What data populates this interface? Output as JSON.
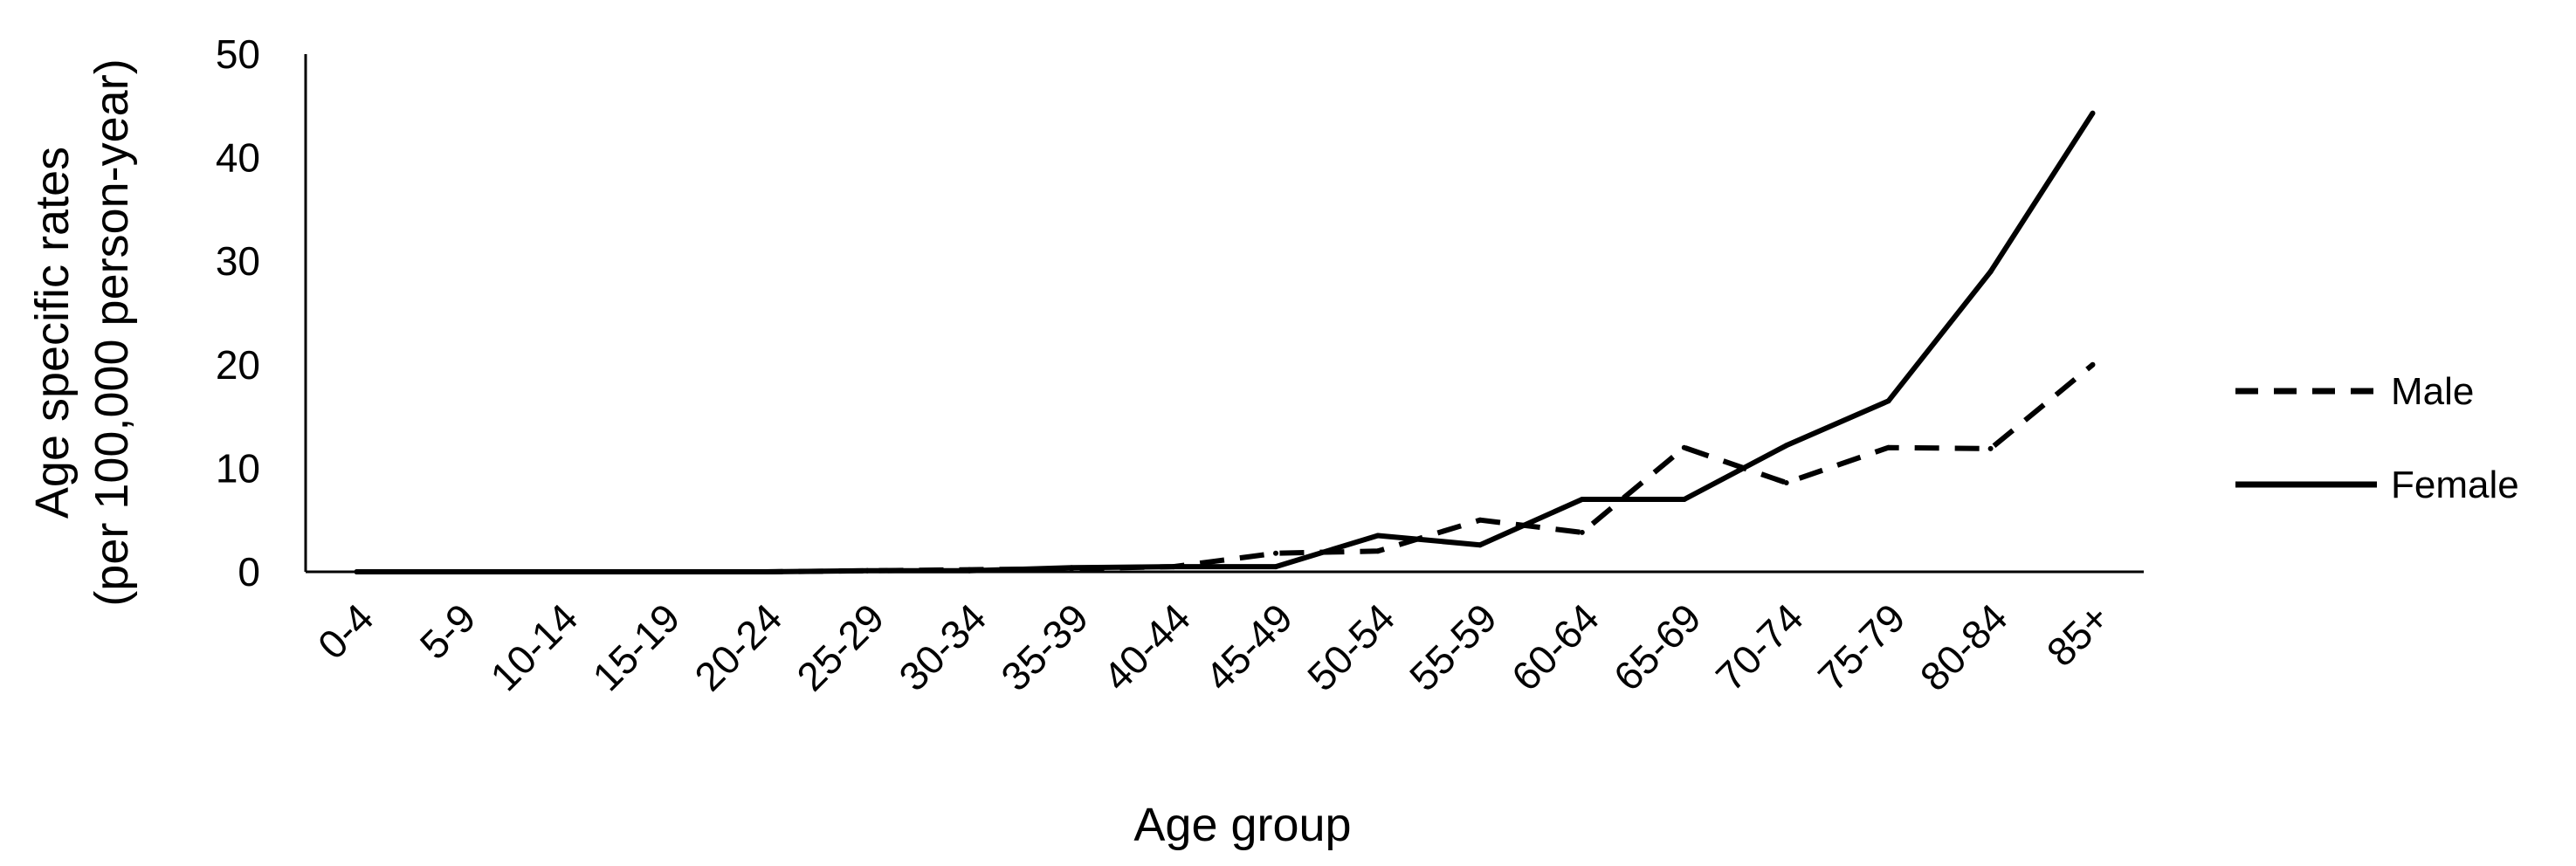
{
  "chart_data": {
    "type": "line",
    "title": "",
    "xlabel": "Age group",
    "ylabel": [
      "Age specific rates",
      "(per 100,000 person-year)"
    ],
    "ylim": [
      0,
      50
    ],
    "yticks": [
      0,
      10,
      20,
      30,
      40,
      50
    ],
    "grid": false,
    "legend_position": "right",
    "categories": [
      "0-4",
      "5-9",
      "10-14",
      "15-19",
      "20-24",
      "25-29",
      "30-34",
      "35-39",
      "40-44",
      "45-49",
      "50-54",
      "55-59",
      "60-64",
      "65-69",
      "70-74",
      "75-79",
      "80-84",
      "85+"
    ],
    "series": [
      {
        "name": "Male",
        "style": "dashed",
        "color": "#000000",
        "values": [
          0,
          0,
          0,
          0,
          0,
          0.1,
          0.2,
          0.3,
          0.5,
          1.8,
          2.0,
          5.0,
          3.8,
          12.0,
          8.6,
          12.0,
          11.9,
          20.0
        ]
      },
      {
        "name": "Female",
        "style": "solid",
        "color": "#000000",
        "values": [
          0,
          0,
          0,
          0,
          0,
          0.1,
          0.1,
          0.4,
          0.5,
          0.5,
          3.5,
          2.6,
          7.0,
          7.0,
          12.2,
          16.5,
          29.0,
          44.3
        ]
      }
    ]
  }
}
